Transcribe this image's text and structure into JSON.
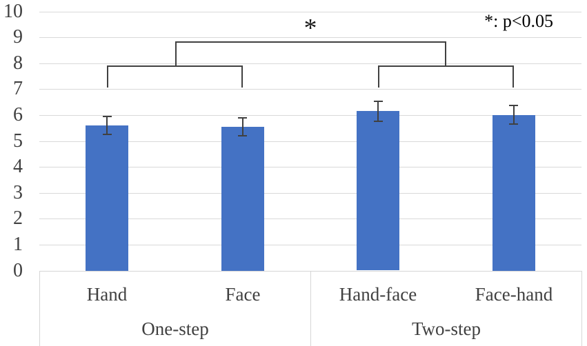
{
  "chart_data": {
    "type": "bar",
    "title": "",
    "categories": [
      "Hand",
      "Face",
      "Hand-face",
      "Face-hand"
    ],
    "groups": [
      {
        "label": "One-step",
        "category_indices": [
          0,
          1
        ]
      },
      {
        "label": "Two-step",
        "category_indices": [
          2,
          3
        ]
      }
    ],
    "values": [
      5.6,
      5.55,
      6.15,
      6.0
    ],
    "error_bars": [
      0.35,
      0.35,
      0.38,
      0.36
    ],
    "ylim": [
      0,
      10
    ],
    "yticks": [
      0,
      1,
      2,
      3,
      4,
      5,
      6,
      7,
      8,
      9,
      10
    ],
    "grid": true,
    "bar_color": "#4472C4",
    "error_color": "#404040",
    "grid_color": "#D9D9D9",
    "axis_text_color": "#404040",
    "annotations": {
      "legend_note": "*: p<0.05",
      "significance_star": "*",
      "brackets": [
        {
          "type": "categories",
          "between": [
            0,
            1
          ],
          "height": 7.9,
          "drop_to": 7.05
        },
        {
          "type": "categories",
          "between": [
            2,
            3
          ],
          "height": 7.9,
          "drop_to": 7.05
        },
        {
          "type": "brackets",
          "between": [
            0,
            1
          ],
          "height": 8.85,
          "label": "*"
        }
      ]
    }
  }
}
